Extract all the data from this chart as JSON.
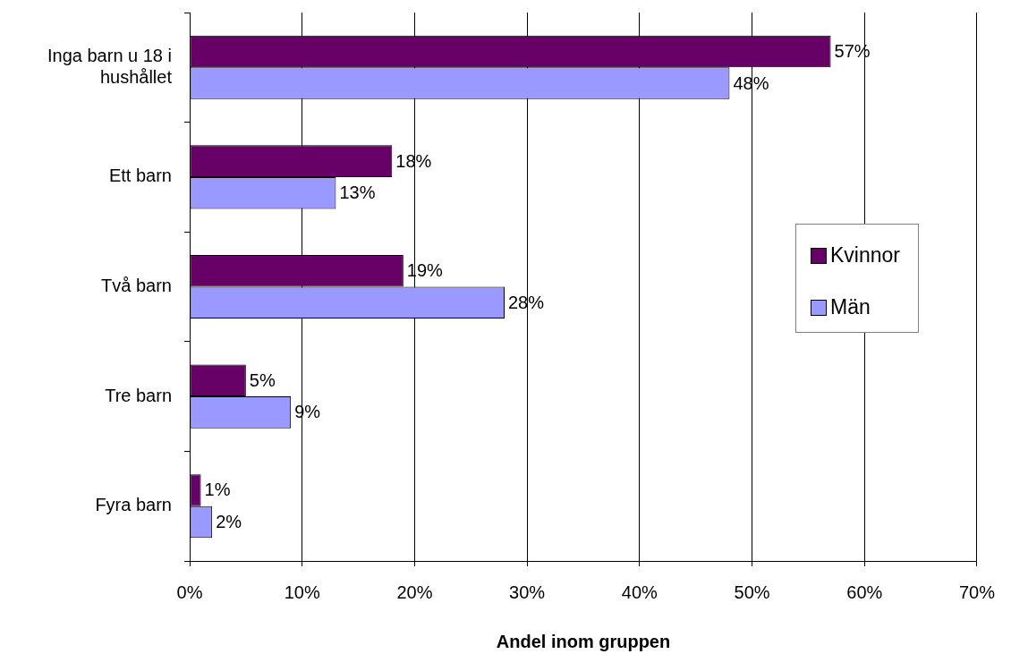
{
  "chart_data": {
    "type": "bar",
    "orientation": "horizontal",
    "xlabel": "Andel inom gruppen",
    "categories": [
      "Inga barn u 18 i hushållet",
      "Ett barn",
      "Två barn",
      "Tre barn",
      "Fyra barn"
    ],
    "series": [
      {
        "name": "Kvinnor",
        "color": "#660066",
        "values": [
          57,
          18,
          19,
          5,
          1
        ],
        "value_labels": [
          "57%",
          "18%",
          "19%",
          "5%",
          "1%"
        ]
      },
      {
        "name": "Män",
        "color": "#9999ff",
        "values": [
          48,
          13,
          28,
          9,
          2
        ],
        "value_labels": [
          "48%",
          "13%",
          "28%",
          "9%",
          "2%"
        ]
      }
    ],
    "xlim": [
      0,
      70
    ],
    "xticks": [
      {
        "value": 0,
        "label": "0%"
      },
      {
        "value": 10,
        "label": "10%"
      },
      {
        "value": 20,
        "label": "20%"
      },
      {
        "value": 30,
        "label": "30%"
      },
      {
        "value": 40,
        "label": "40%"
      },
      {
        "value": 50,
        "label": "50%"
      },
      {
        "value": 60,
        "label": "60%"
      },
      {
        "value": 70,
        "label": "70%"
      }
    ],
    "grid": "x",
    "legend": "right"
  }
}
